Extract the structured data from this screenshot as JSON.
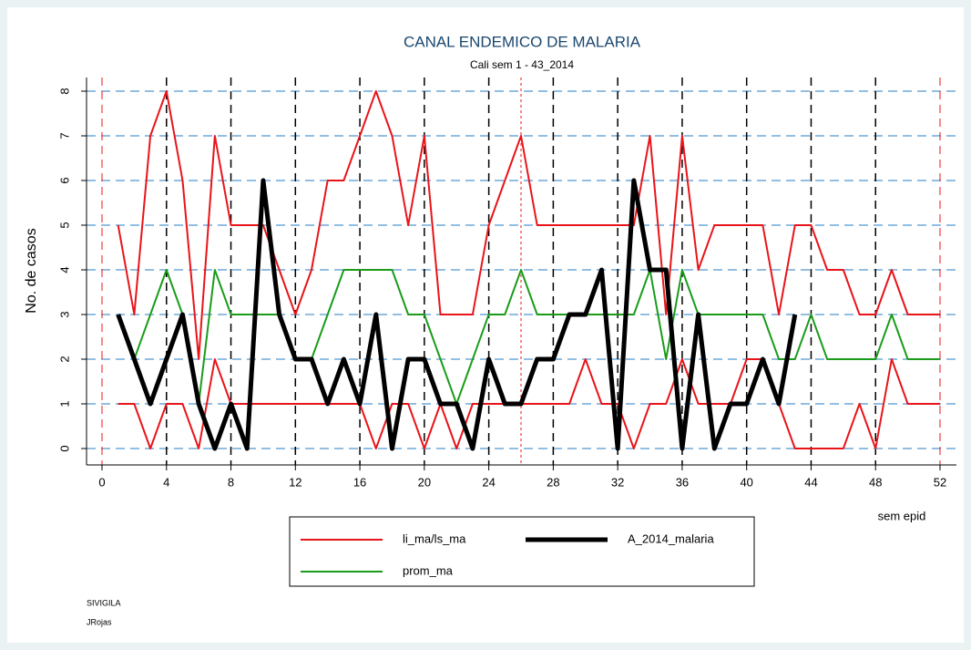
{
  "chart_data": {
    "type": "line",
    "title": "CANAL ENDEMICO DE MALARIA",
    "subtitle": "Cali sem 1 - 43_2014",
    "y_label": "No. de casos",
    "x_label": "sem epid",
    "notes": [
      "SIVIGILA",
      "JRojas"
    ],
    "x": [
      1,
      2,
      3,
      4,
      5,
      6,
      7,
      8,
      9,
      10,
      11,
      12,
      13,
      14,
      15,
      16,
      17,
      18,
      19,
      20,
      21,
      22,
      23,
      24,
      25,
      26,
      27,
      28,
      29,
      30,
      31,
      32,
      33,
      34,
      35,
      36,
      37,
      38,
      39,
      40,
      41,
      42,
      43,
      44,
      45,
      46,
      47,
      48,
      49,
      50,
      51,
      52
    ],
    "band": {
      "name": "li_ma/ls_ma",
      "color": "#e8141a",
      "upper": [
        5,
        3,
        7,
        8,
        6,
        2,
        7,
        5,
        5,
        5,
        4,
        3,
        4,
        6,
        6,
        7,
        8,
        7,
        5,
        7,
        3,
        3,
        3,
        5,
        6,
        7,
        5,
        5,
        5,
        5,
        5,
        5,
        5,
        7,
        3,
        7,
        4,
        5,
        5,
        5,
        5,
        3,
        5,
        5,
        4,
        4,
        3,
        3,
        4,
        3,
        3,
        3
      ],
      "lower": [
        1,
        1,
        0,
        1,
        1,
        0,
        2,
        1,
        1,
        1,
        1,
        1,
        1,
        1,
        1,
        1,
        0,
        1,
        1,
        0,
        1,
        0,
        1,
        1,
        1,
        1,
        1,
        1,
        1,
        2,
        1,
        1,
        0,
        1,
        1,
        2,
        1,
        1,
        1,
        2,
        2,
        1,
        0,
        0,
        0,
        0,
        1,
        0,
        2,
        1,
        1,
        1
      ]
    },
    "series": [
      {
        "name": "A_2014_malaria",
        "color": "#000000",
        "values": [
          3,
          2,
          1,
          2,
          3,
          1,
          0,
          1,
          0,
          6,
          3,
          2,
          2,
          1,
          2,
          1,
          3,
          0,
          2,
          2,
          1,
          1,
          0,
          2,
          1,
          1,
          2,
          2,
          3,
          3,
          4,
          0,
          6,
          4,
          4,
          0,
          3,
          0,
          1,
          1,
          2,
          1,
          3,
          null,
          null,
          null,
          null,
          null,
          null,
          null,
          null,
          null
        ]
      },
      {
        "name": "prom_ma",
        "color": "#1a9c1a",
        "values": [
          3,
          2,
          3,
          4,
          3,
          1,
          4,
          3,
          3,
          3,
          3,
          2,
          2,
          3,
          4,
          4,
          4,
          4,
          3,
          3,
          2,
          1,
          2,
          3,
          3,
          4,
          3,
          3,
          3,
          3,
          3,
          3,
          3,
          4,
          2,
          4,
          3,
          3,
          3,
          3,
          3,
          2,
          2,
          3,
          2,
          2,
          2,
          2,
          3,
          2,
          2,
          2
        ]
      }
    ],
    "xlim": [
      0,
      52
    ],
    "ylim": [
      0,
      8
    ],
    "xticks": [
      0,
      4,
      8,
      12,
      16,
      20,
      24,
      28,
      32,
      36,
      40,
      44,
      48,
      52
    ],
    "yticks": [
      0,
      1,
      2,
      3,
      4,
      5,
      6,
      7,
      8
    ],
    "grid": true,
    "xlines": [
      {
        "value": 0,
        "color": "#e8141a",
        "style": "dashed"
      },
      {
        "value": 4,
        "color": "#000000",
        "style": "dashed"
      },
      {
        "value": 8,
        "color": "#000000",
        "style": "dashed"
      },
      {
        "value": 12,
        "color": "#000000",
        "style": "dashed"
      },
      {
        "value": 16,
        "color": "#000000",
        "style": "dashed"
      },
      {
        "value": 20,
        "color": "#000000",
        "style": "dashed"
      },
      {
        "value": 24,
        "color": "#000000",
        "style": "dashed"
      },
      {
        "value": 26,
        "color": "#e8141a",
        "style": "dotted"
      },
      {
        "value": 28,
        "color": "#000000",
        "style": "dashed"
      },
      {
        "value": 32,
        "color": "#000000",
        "style": "dashed"
      },
      {
        "value": 36,
        "color": "#000000",
        "style": "dashed"
      },
      {
        "value": 40,
        "color": "#000000",
        "style": "dashed"
      },
      {
        "value": 44,
        "color": "#000000",
        "style": "dashed"
      },
      {
        "value": 48,
        "color": "#000000",
        "style": "dashed"
      },
      {
        "value": 52,
        "color": "#e8141a",
        "style": "dashed"
      }
    ]
  }
}
